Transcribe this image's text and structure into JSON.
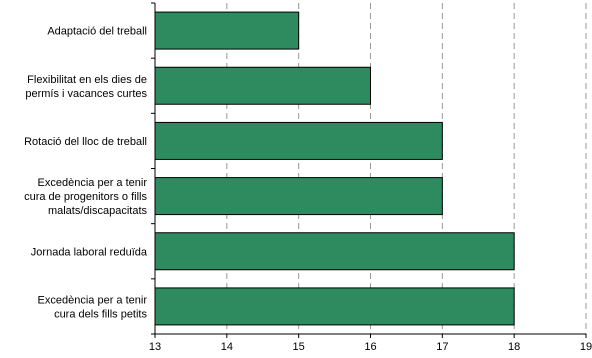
{
  "chart_data": {
    "type": "bar",
    "orientation": "horizontal",
    "categories": [
      "Adaptació del treball",
      "Flexibilitat en els dies de permís i vacances curtes",
      "Rotació del lloc de treball",
      "Excedència per a tenir cura de progenitors o fills malats/discapacitats",
      "Jornada laboral reduïda",
      "Excedència per a tenir cura dels fills petits"
    ],
    "category_lines": [
      [
        "Adaptació del treball"
      ],
      [
        "Flexibilitat en els dies de",
        "permís i vacances curtes"
      ],
      [
        "Rotació del lloc de treball"
      ],
      [
        "Excedència per a tenir",
        "cura de progenitors o fills",
        "malats/discapacitats"
      ],
      [
        "Jornada laboral reduïda"
      ],
      [
        "Excedència per a tenir",
        "cura dels fills petits"
      ]
    ],
    "values": [
      15,
      16,
      17,
      17,
      18,
      18
    ],
    "xlim": [
      13,
      19
    ],
    "xticks": [
      13,
      14,
      15,
      16,
      17,
      18,
      19
    ],
    "grid": "vertical dashed",
    "bar_color": "#2e8b5f",
    "title": "",
    "xlabel": "",
    "ylabel": ""
  }
}
